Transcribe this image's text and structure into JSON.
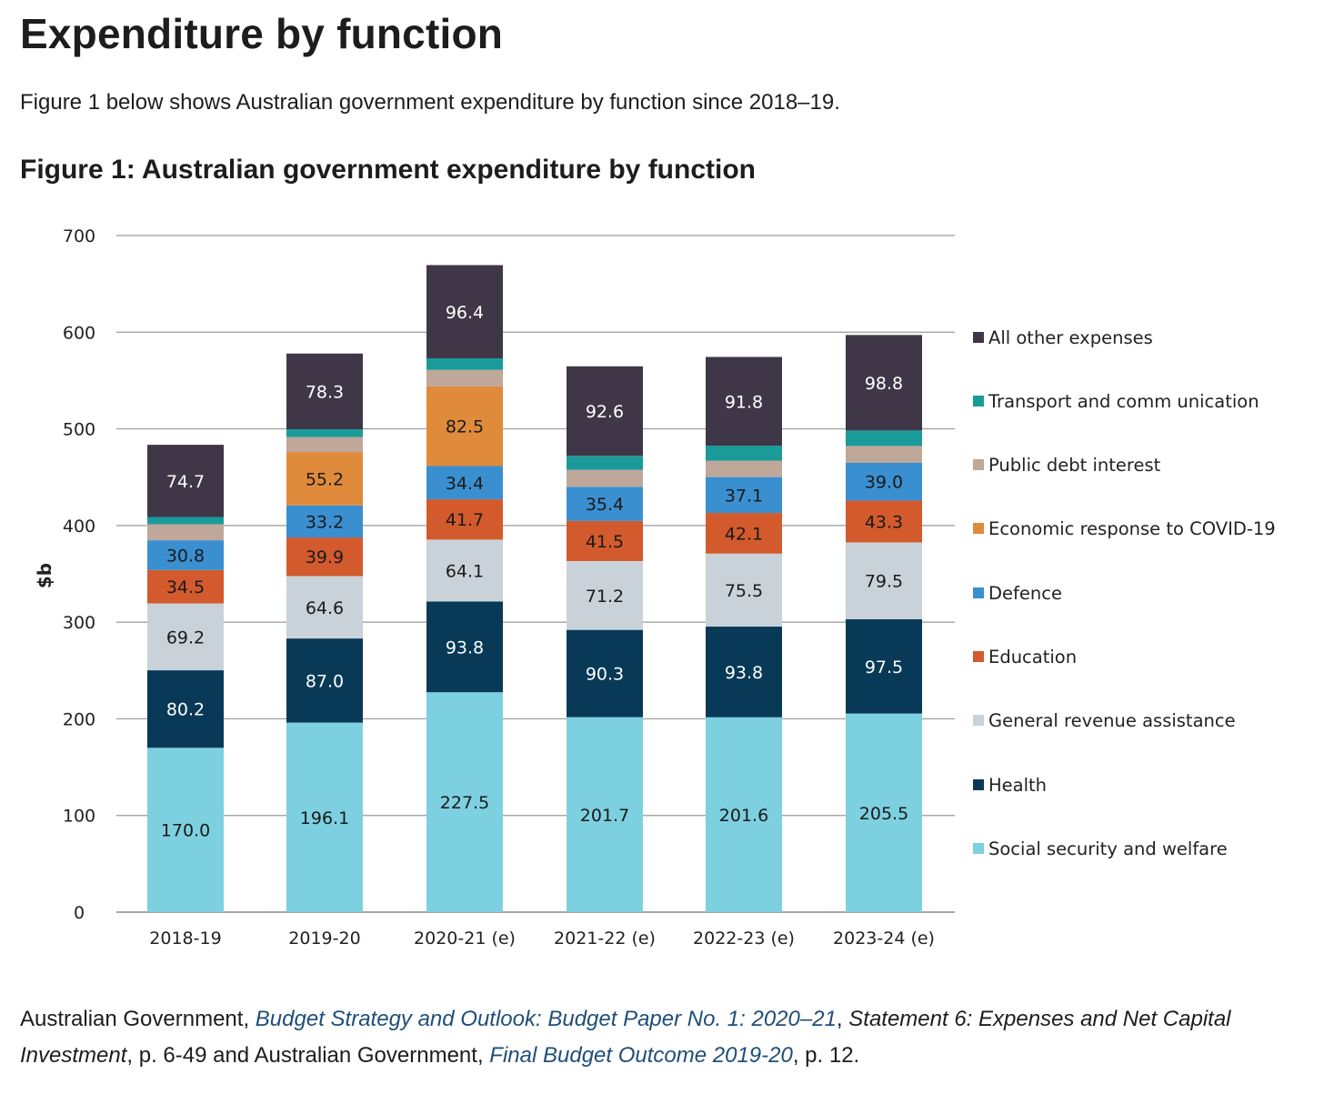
{
  "page": {
    "title": "Expenditure by function",
    "intro": "Figure 1 below shows Australian government expenditure by function since 2018–19.",
    "figure_title": "Figure 1: Australian government expenditure by function"
  },
  "source": {
    "part1": "Australian Government, ",
    "link1": "Budget Strategy and Outlook: Budget Paper No. 1: 2020–21",
    "part2": ", ",
    "part3": "Statement 6: Expenses and Net Capital Investment",
    "part4": ", p. 6-49 and Australian Government, ",
    "link2": "Final Budget Outcome 2019-20",
    "part5": ", p. 12."
  },
  "chart_data": {
    "type": "bar",
    "stacked": true,
    "ylabel": "$b",
    "ylim": [
      0,
      700
    ],
    "yticks": [
      0,
      100,
      200,
      300,
      400,
      500,
      600,
      700
    ],
    "grid": true,
    "legend_position": "right",
    "categories": [
      "2018-19",
      "2019-20",
      "2020-21 (e)",
      "2021-22 (e)",
      "2022-23 (e)",
      "2023-24 (e)"
    ],
    "series": [
      {
        "name": "Social security and welfare",
        "color": "#7dd0e0",
        "label_color": "#1a1a1a",
        "values": [
          170.0,
          196.1,
          227.5,
          201.7,
          201.6,
          205.5
        ]
      },
      {
        "name": "Health",
        "color": "#083a57",
        "label_color": "#ffffff",
        "values": [
          80.2,
          87.0,
          93.8,
          90.3,
          93.8,
          97.5
        ]
      },
      {
        "name": "General revenue assistance",
        "color": "#c9d2d9",
        "label_color": "#1a1a1a",
        "values": [
          69.2,
          64.6,
          64.1,
          71.2,
          75.5,
          79.5
        ]
      },
      {
        "name": "Education",
        "color": "#d35a2c",
        "label_color": "#1a1a1a",
        "values": [
          34.5,
          39.9,
          41.7,
          41.5,
          42.1,
          43.3
        ]
      },
      {
        "name": "Defence",
        "color": "#3a8fd0",
        "label_color": "#1a1a1a",
        "values": [
          30.8,
          33.2,
          34.4,
          35.4,
          37.1,
          39.0
        ]
      },
      {
        "name": "Economic response to COVID-19",
        "color": "#e08a3c",
        "label_color": "#1a1a1a",
        "values": [
          0,
          55.2,
          82.5,
          0,
          0,
          0
        ]
      },
      {
        "name": "Public debt interest",
        "color": "#bfa79a",
        "label_color": "#1a1a1a",
        "values": [
          16.6,
          15.6,
          17.0,
          17.5,
          17.0,
          17.5
        ]
      },
      {
        "name": "Transport and communication",
        "color": "#1a9b9a",
        "label_color": "#1a1a1a",
        "values": [
          7.5,
          8.0,
          12.0,
          14.5,
          15.5,
          16.0
        ]
      },
      {
        "name": "All other expenses",
        "color": "#3f3747",
        "label_color": "#ffffff",
        "values": [
          74.7,
          78.3,
          96.4,
          92.6,
          91.8,
          98.8
        ]
      }
    ],
    "data_labels": [
      [
        170.0,
        80.2,
        69.2,
        34.5,
        30.8,
        null,
        null,
        null,
        74.7
      ],
      [
        196.1,
        87.0,
        64.6,
        39.9,
        33.2,
        55.2,
        null,
        null,
        78.3
      ],
      [
        227.5,
        93.8,
        64.1,
        41.7,
        34.4,
        82.5,
        null,
        null,
        96.4
      ],
      [
        201.7,
        90.3,
        71.2,
        41.5,
        35.4,
        null,
        null,
        null,
        92.6
      ],
      [
        201.6,
        93.8,
        75.5,
        42.1,
        37.1,
        null,
        null,
        null,
        91.8
      ],
      [
        205.5,
        97.5,
        79.5,
        43.3,
        39.0,
        null,
        null,
        null,
        98.8
      ]
    ],
    "legend_order": [
      "All other expenses",
      "Transport and comm unication",
      "Public debt interest",
      "Economic response to COVID-19",
      "Defence",
      "Education",
      "General revenue assistance",
      "Health",
      "Social security and welfare"
    ]
  }
}
